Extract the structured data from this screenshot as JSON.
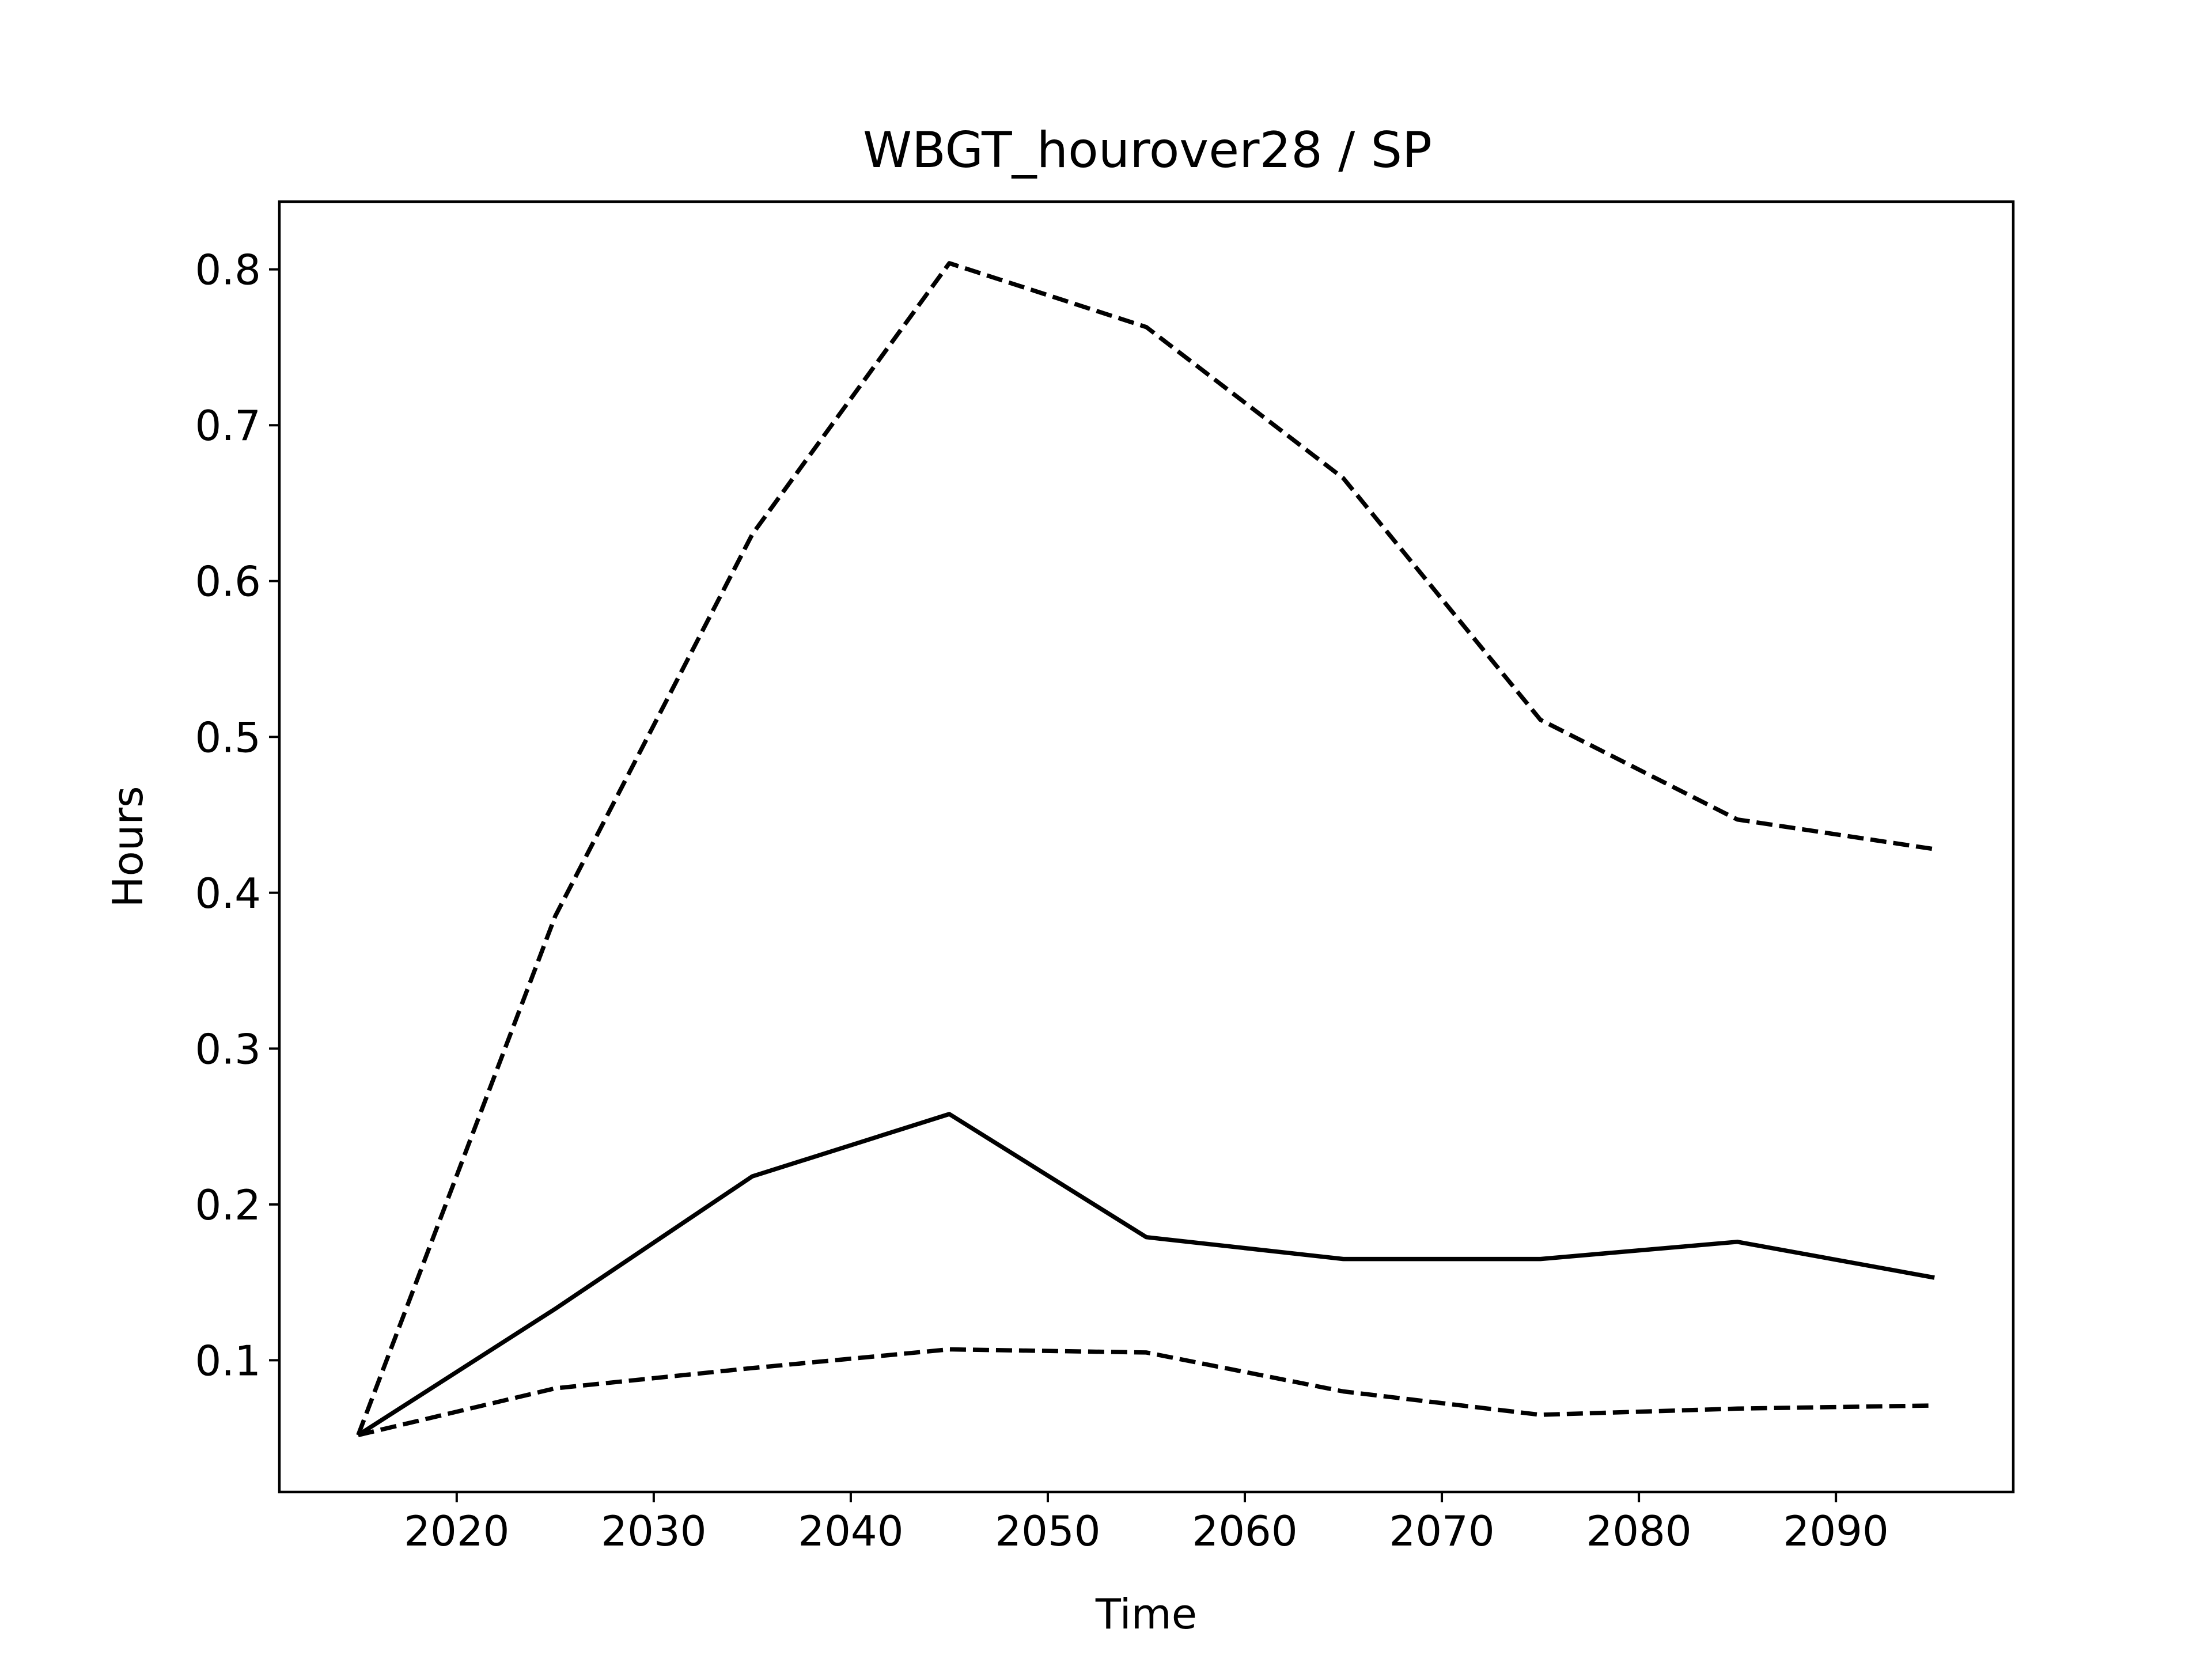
{
  "chart_data": {
    "type": "line",
    "title": "WBGT_hourover28 / SP",
    "xlabel": "Time",
    "ylabel": "Hours",
    "xlim": [
      2011,
      2099
    ],
    "ylim": [
      0.0155,
      0.8435
    ],
    "xticks": [
      2020,
      2030,
      2040,
      2050,
      2060,
      2070,
      2080,
      2090
    ],
    "yticks": [
      0.1,
      0.2,
      0.3,
      0.4,
      0.5,
      0.6,
      0.7,
      0.8
    ],
    "grid": false,
    "legend": "none",
    "x": [
      2015,
      2025,
      2035,
      2045,
      2055,
      2065,
      2075,
      2085,
      2095
    ],
    "series": [
      {
        "style": "solid",
        "color": "#000000",
        "values": [
          0.052,
          0.133,
          0.218,
          0.258,
          0.179,
          0.165,
          0.165,
          0.176,
          0.153
        ]
      },
      {
        "style": "dashed",
        "color": "#000000",
        "values": [
          0.052,
          0.385,
          0.63,
          0.804,
          0.763,
          0.666,
          0.511,
          0.447,
          0.428
        ]
      },
      {
        "style": "dashed",
        "color": "#000000",
        "values": [
          0.052,
          0.082,
          0.095,
          0.107,
          0.105,
          0.08,
          0.065,
          0.069,
          0.071
        ]
      }
    ]
  }
}
